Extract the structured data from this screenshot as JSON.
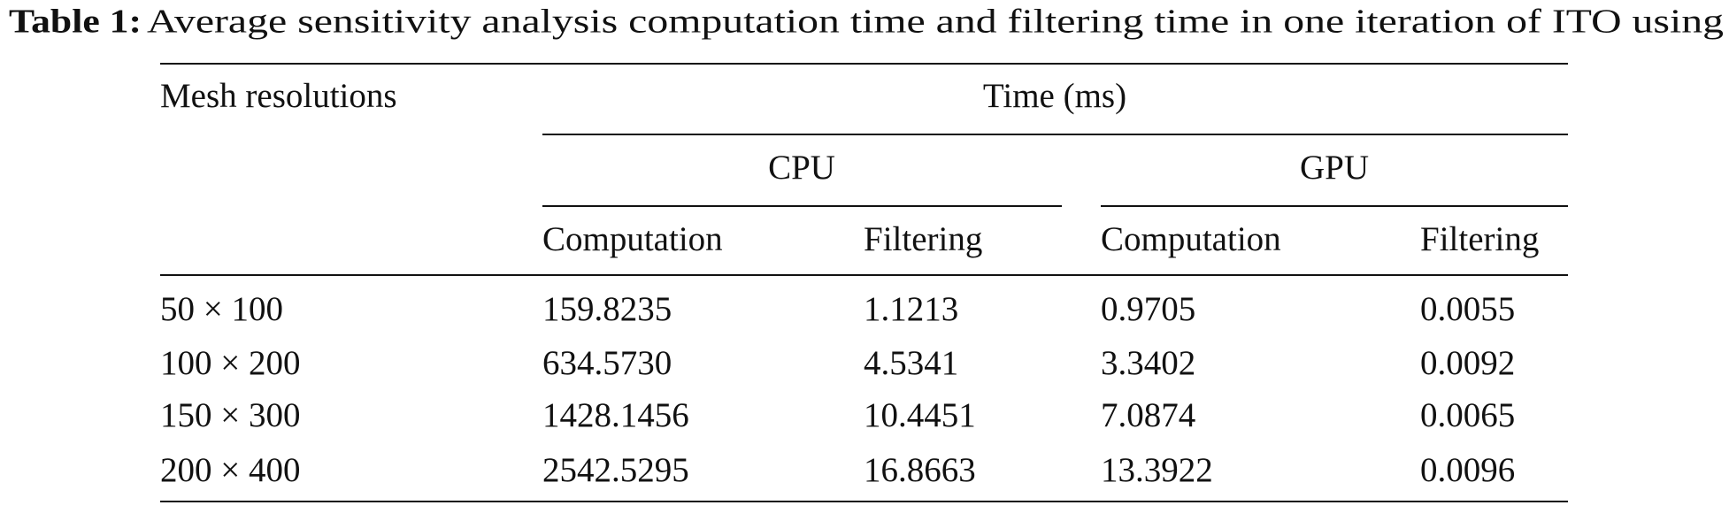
{
  "caption": {
    "label": "Table 1:",
    "text": "Average sensitivity analysis computation time and filtering time in one iteration of ITO using"
  },
  "table": {
    "row_header": "Mesh resolutions",
    "group_header": "Time (ms)",
    "subgroups": [
      "CPU",
      "GPU"
    ],
    "columns": [
      "Computation",
      "Filtering",
      "Computation",
      "Filtering"
    ],
    "rows": [
      [
        "50 × 100",
        "159.8235",
        "1.1213",
        "0.9705",
        "0.0055"
      ],
      [
        "100 × 200",
        "634.5730",
        "4.5341",
        "3.3402",
        "0.0092"
      ],
      [
        "150 × 300",
        "1428.1456",
        "10.4451",
        "7.0874",
        "0.0065"
      ],
      [
        "200 × 400",
        "2542.5295",
        "16.8663",
        "13.3922",
        "0.0096"
      ]
    ]
  }
}
